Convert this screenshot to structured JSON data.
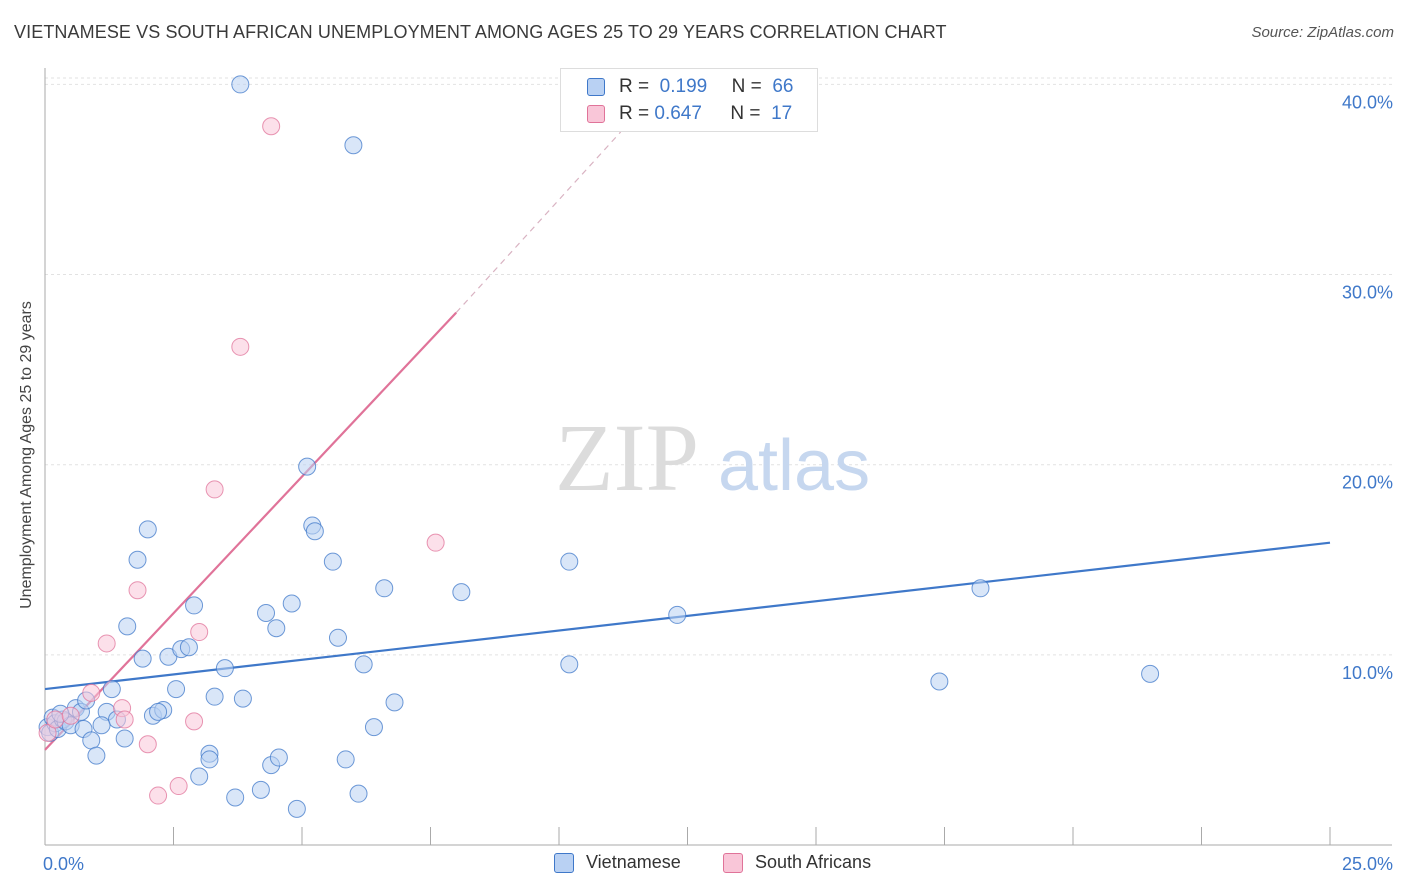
{
  "title": "VIETNAMESE VS SOUTH AFRICAN UNEMPLOYMENT AMONG AGES 25 TO 29 YEARS CORRELATION CHART",
  "source": "Source: ZipAtlas.com",
  "watermark": {
    "zip": "ZIP",
    "atlas": "atlas"
  },
  "legend": {
    "r_label": "R =",
    "n_label": "N =",
    "vietnamese": {
      "r": "0.199",
      "n": "66"
    },
    "south_africans": {
      "r": "0.647",
      "n": "17"
    }
  },
  "chart_data": {
    "type": "scatter",
    "title": "VIETNAMESE VS SOUTH AFRICAN UNEMPLOYMENT AMONG AGES 25 TO 29 YEARS CORRELATION CHART",
    "xlabel": "",
    "ylabel": "Unemployment Among Ages 25 to 29 years",
    "xlim": [
      0,
      25
    ],
    "ylim": [
      0,
      40.6
    ],
    "x_tick_labels": [
      "0.0%",
      "25.0%"
    ],
    "y_ticks": [
      10,
      20,
      30,
      40
    ],
    "y_tick_labels": [
      "10.0%",
      "20.0%",
      "30.0%",
      "40.0%"
    ],
    "grid": true,
    "legend_position": "top-center",
    "colors": {
      "vietnamese": "#3f78c9",
      "south_africans": "#e07399",
      "vietnamese_fill": "#b9d1f3",
      "south_africans_fill": "#f9c6d8"
    },
    "series": [
      {
        "name": "Vietnamese",
        "trend": {
          "x0": 0,
          "y0": 8.2,
          "x1": 25,
          "y1": 15.9
        },
        "points": [
          [
            0.05,
            6.2
          ],
          [
            0.1,
            5.9
          ],
          [
            0.15,
            6.7
          ],
          [
            0.2,
            6.4
          ],
          [
            0.25,
            6.1
          ],
          [
            0.35,
            6.6
          ],
          [
            0.4,
            6.5
          ],
          [
            0.5,
            6.3
          ],
          [
            0.6,
            7.2
          ],
          [
            0.7,
            7.0
          ],
          [
            0.75,
            6.1
          ],
          [
            0.8,
            7.6
          ],
          [
            0.9,
            5.5
          ],
          [
            1.0,
            4.7
          ],
          [
            1.2,
            7.0
          ],
          [
            1.3,
            8.2
          ],
          [
            1.4,
            6.6
          ],
          [
            1.55,
            5.6
          ],
          [
            1.6,
            11.5
          ],
          [
            1.8,
            15.0
          ],
          [
            1.9,
            9.8
          ],
          [
            2.0,
            16.6
          ],
          [
            2.1,
            6.8
          ],
          [
            2.3,
            7.1
          ],
          [
            2.4,
            9.9
          ],
          [
            2.55,
            8.2
          ],
          [
            2.65,
            10.3
          ],
          [
            2.8,
            10.4
          ],
          [
            2.9,
            12.6
          ],
          [
            3.0,
            3.6
          ],
          [
            3.2,
            4.8
          ],
          [
            3.2,
            4.5
          ],
          [
            3.3,
            7.8
          ],
          [
            3.5,
            9.3
          ],
          [
            3.7,
            2.5
          ],
          [
            3.8,
            40.0
          ],
          [
            3.85,
            7.7
          ],
          [
            4.2,
            2.9
          ],
          [
            4.3,
            12.2
          ],
          [
            4.4,
            4.2
          ],
          [
            4.5,
            11.4
          ],
          [
            4.55,
            4.6
          ],
          [
            4.8,
            12.7
          ],
          [
            4.9,
            1.9
          ],
          [
            5.1,
            19.9
          ],
          [
            5.2,
            16.8
          ],
          [
            5.25,
            16.5
          ],
          [
            5.6,
            14.9
          ],
          [
            5.7,
            10.9
          ],
          [
            5.85,
            4.5
          ],
          [
            6.0,
            36.8
          ],
          [
            6.1,
            2.7
          ],
          [
            6.2,
            9.5
          ],
          [
            6.4,
            6.2
          ],
          [
            6.6,
            13.5
          ],
          [
            6.8,
            7.5
          ],
          [
            8.1,
            13.3
          ],
          [
            10.2,
            9.5
          ],
          [
            10.2,
            14.9
          ],
          [
            12.3,
            12.1
          ],
          [
            17.4,
            8.6
          ],
          [
            18.2,
            13.5
          ],
          [
            21.5,
            9.0
          ],
          [
            0.3,
            6.9
          ],
          [
            1.1,
            6.3
          ],
          [
            2.2,
            7.0
          ]
        ]
      },
      {
        "name": "South Africans",
        "trend": {
          "x0": 0,
          "y0": 5.0,
          "x1": 8.0,
          "y1": 28.0
        },
        "trend_dashed": {
          "x0": 8.0,
          "y0": 28.0,
          "x1": 11.2,
          "y1": 37.5
        },
        "points": [
          [
            0.05,
            5.9
          ],
          [
            0.2,
            6.6
          ],
          [
            0.5,
            6.8
          ],
          [
            0.9,
            8.0
          ],
          [
            1.2,
            10.6
          ],
          [
            1.5,
            7.2
          ],
          [
            1.55,
            6.6
          ],
          [
            1.8,
            13.4
          ],
          [
            2.0,
            5.3
          ],
          [
            2.2,
            2.6
          ],
          [
            2.6,
            3.1
          ],
          [
            2.9,
            6.5
          ],
          [
            3.0,
            11.2
          ],
          [
            3.3,
            18.7
          ],
          [
            3.8,
            26.2
          ],
          [
            4.4,
            37.8
          ],
          [
            7.6,
            15.9
          ]
        ]
      }
    ]
  },
  "bottom_legend": {
    "vietnamese": "Vietnamese",
    "south_africans": "South Africans"
  }
}
